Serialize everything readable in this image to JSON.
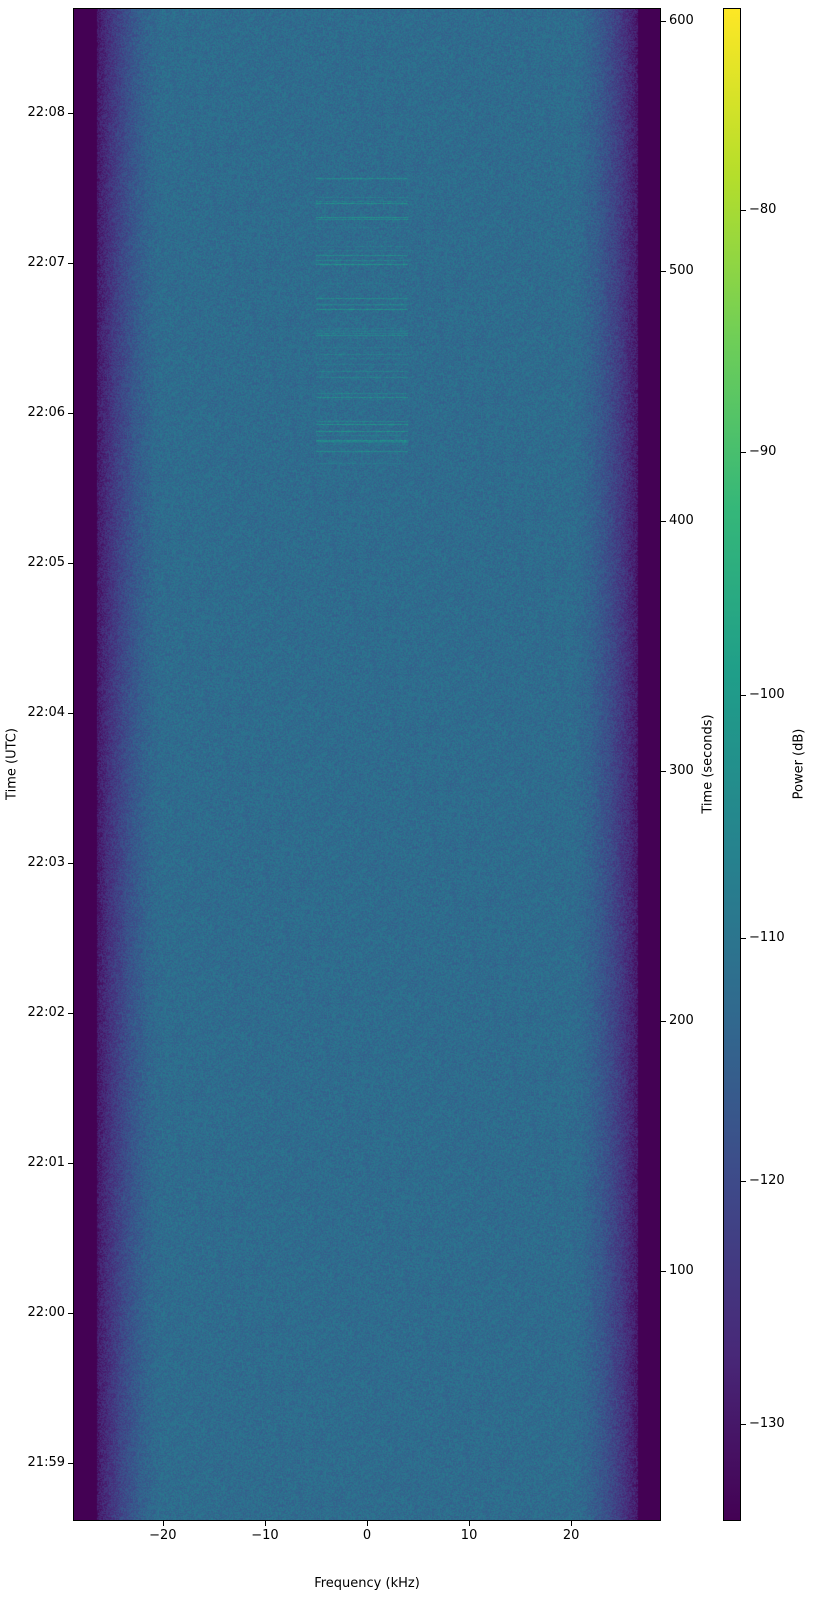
{
  "chart_data": {
    "type": "heatmap",
    "subtype": "spectrogram",
    "xlabel": "Frequency (kHz)",
    "ylabel_left": "Time (UTC)",
    "ylabel_right": "Time (seconds)",
    "colorbar_label": "Power (dB)",
    "colormap": "viridis",
    "xlim": [
      -28.8,
      28.8
    ],
    "ylim_seconds": [
      0,
      605
    ],
    "clim": [
      -134,
      -71.7
    ],
    "x_ticks": [
      "−20",
      "−10",
      "0",
      "10",
      "20"
    ],
    "x_tick_values": [
      -20,
      -10,
      0,
      10,
      20
    ],
    "y_left_ticks": [
      "22:08",
      "22:07",
      "22:06",
      "22:05",
      "22:04",
      "22:03",
      "22:02",
      "22:01",
      "22:00",
      "21:59"
    ],
    "y_left_tick_seconds": [
      563,
      503,
      443,
      383,
      323,
      263,
      203,
      143,
      83,
      23
    ],
    "y_right_ticks": [
      "600",
      "500",
      "400",
      "300",
      "200",
      "100"
    ],
    "y_right_tick_values": [
      600,
      500,
      400,
      300,
      200,
      100
    ],
    "colorbar_ticks": [
      "−80",
      "−90",
      "−100",
      "−110",
      "−120",
      "−130"
    ],
    "colorbar_tick_values": [
      -80,
      -90,
      -100,
      -110,
      -120,
      -130
    ],
    "noise_floor_db": -112,
    "passband_khz": [
      -26.5,
      26.5
    ],
    "burst_region": {
      "freq_khz": [
        -5,
        4
      ],
      "seconds": [
        420,
        540
      ],
      "peak_db": -100
    }
  }
}
